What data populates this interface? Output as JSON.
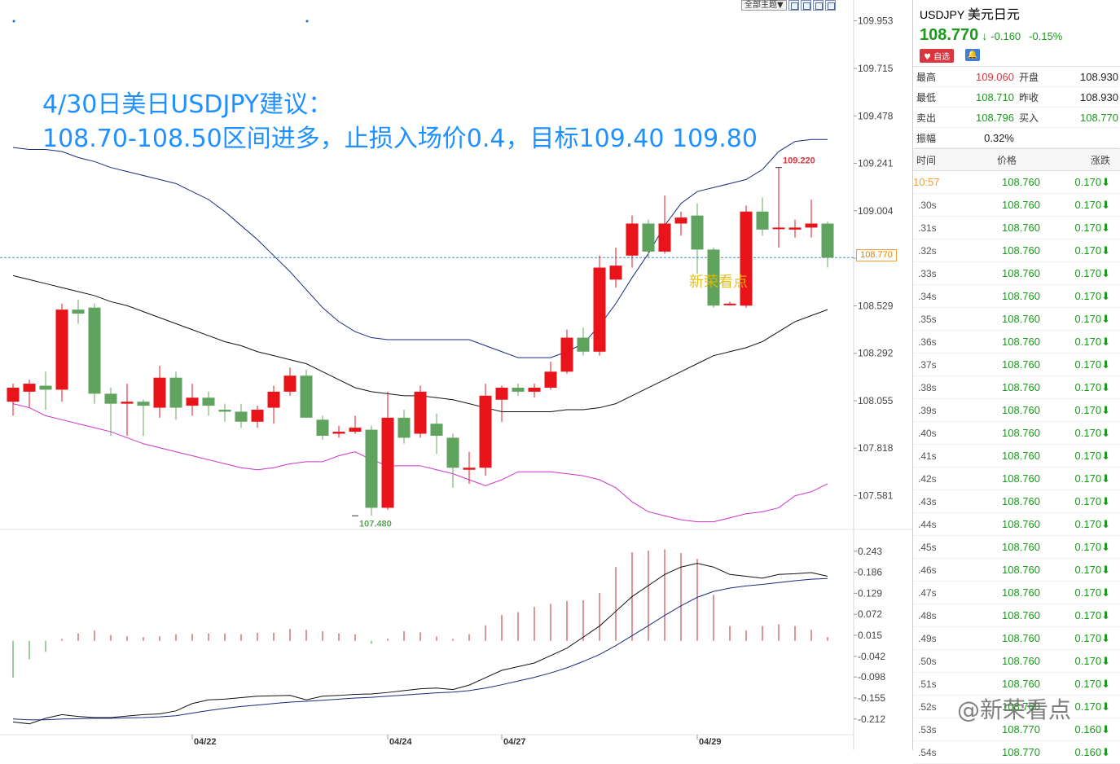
{
  "toolbar": {
    "theme_label": "全部主题▼"
  },
  "advice": {
    "line1": "4/30日美日USDJPY建议：",
    "line2": "108.70-108.50区间进多，止损入场价0.4，目标109.40  109.80"
  },
  "watermarks": {
    "chart": "新荣看点",
    "bottom": "@新荣看点"
  },
  "price_tag": "108.770",
  "colors": {
    "up": "#e8141a",
    "down": "#5fa35f",
    "accent": "#1e90ff",
    "upper_band": "#1a2a80",
    "mid_band": "#111111",
    "lower_band": "#cc33cc"
  },
  "quote": {
    "symbol": "USDJPY",
    "name": "美元日元",
    "last": "108.770",
    "arrow": "↓",
    "change": "-0.160",
    "change_pct": "-0.15%",
    "fav_label": "自选",
    "bell_icon": "bell-icon"
  },
  "stats": [
    {
      "l1": "最高",
      "v1": "109.060",
      "c1": "red",
      "l2": "开盘",
      "v2": "108.930",
      "c2": "black"
    },
    {
      "l1": "最低",
      "v1": "108.710",
      "c1": "green",
      "l2": "昨收",
      "v2": "108.930",
      "c2": "black"
    },
    {
      "l1": "卖出",
      "v1": "108.796",
      "c1": "green",
      "l2": "买入",
      "v2": "108.770",
      "c2": "green"
    },
    {
      "l1": "振幅",
      "v1": "0.32%",
      "c1": "black",
      "l2": "",
      "v2": "",
      "c2": "black"
    }
  ],
  "ticks_header": {
    "time": "时间",
    "price": "价格",
    "change": "涨跌"
  },
  "ticks": [
    {
      "time": "10:57",
      "price": "108.760",
      "change": "0.170",
      "hl": true
    },
    {
      "time": ".30s",
      "price": "108.760",
      "change": "0.170"
    },
    {
      "time": ".31s",
      "price": "108.760",
      "change": "0.170"
    },
    {
      "time": ".32s",
      "price": "108.760",
      "change": "0.170"
    },
    {
      "time": ".33s",
      "price": "108.760",
      "change": "0.170"
    },
    {
      "time": ".34s",
      "price": "108.760",
      "change": "0.170"
    },
    {
      "time": ".35s",
      "price": "108.760",
      "change": "0.170"
    },
    {
      "time": ".36s",
      "price": "108.760",
      "change": "0.170"
    },
    {
      "time": ".37s",
      "price": "108.760",
      "change": "0.170"
    },
    {
      "time": ".38s",
      "price": "108.760",
      "change": "0.170"
    },
    {
      "time": ".39s",
      "price": "108.760",
      "change": "0.170"
    },
    {
      "time": ".40s",
      "price": "108.760",
      "change": "0.170"
    },
    {
      "time": ".41s",
      "price": "108.760",
      "change": "0.170"
    },
    {
      "time": ".42s",
      "price": "108.760",
      "change": "0.170"
    },
    {
      "time": ".43s",
      "price": "108.760",
      "change": "0.170"
    },
    {
      "time": ".44s",
      "price": "108.760",
      "change": "0.170"
    },
    {
      "time": ".45s",
      "price": "108.760",
      "change": "0.170"
    },
    {
      "time": ".46s",
      "price": "108.760",
      "change": "0.170"
    },
    {
      "time": ".47s",
      "price": "108.760",
      "change": "0.170"
    },
    {
      "time": ".48s",
      "price": "108.760",
      "change": "0.170"
    },
    {
      "time": ".49s",
      "price": "108.760",
      "change": "0.170"
    },
    {
      "time": ".50s",
      "price": "108.760",
      "change": "0.170"
    },
    {
      "time": ".51s",
      "price": "108.760",
      "change": "0.170"
    },
    {
      "time": ".52s",
      "price": "108.760",
      "change": "0.170"
    },
    {
      "time": ".53s",
      "price": "108.770",
      "change": "0.160"
    },
    {
      "time": ".54s",
      "price": "108.770",
      "change": "0.160"
    }
  ],
  "chart_data": {
    "type": "candlestick",
    "price_axis_ticks": [
      109.953,
      109.715,
      109.478,
      109.241,
      109.004,
      108.767,
      108.529,
      108.292,
      108.055,
      107.818,
      107.581
    ],
    "price_axis_labels": [
      "109.953",
      "109.715",
      "109.478",
      "109.241",
      "109.004",
      "108.767",
      "108.529",
      "108.292",
      "108.055",
      "107.818",
      "107.581"
    ],
    "ylim": [
      107.42,
      110.0
    ],
    "date_labels": [
      {
        "label": "04/22",
        "index": 11
      },
      {
        "label": "04/24",
        "index": 23
      },
      {
        "label": "04/27",
        "index": 30
      },
      {
        "label": "04/29",
        "index": 42
      }
    ],
    "annotations": [
      {
        "label": "109.220",
        "index": 47,
        "value": 109.22,
        "color": "#d9363e"
      },
      {
        "label": "107.480",
        "index": 21,
        "value": 107.48,
        "color": "#5fa35f"
      }
    ],
    "current_price": 108.77,
    "candles": [
      [
        108.05,
        108.12,
        108.14,
        107.98
      ],
      [
        108.1,
        108.14,
        108.16,
        108.02
      ],
      [
        108.13,
        108.11,
        108.2,
        108.01
      ],
      [
        108.11,
        108.51,
        108.54,
        108.05
      ],
      [
        108.51,
        108.49,
        108.56,
        108.44
      ],
      [
        108.52,
        108.09,
        108.54,
        108.04
      ],
      [
        108.09,
        108.04,
        108.12,
        107.88
      ],
      [
        108.04,
        108.05,
        108.14,
        107.88
      ],
      [
        108.05,
        108.03,
        108.06,
        107.88
      ],
      [
        108.02,
        108.17,
        108.23,
        107.97
      ],
      [
        108.17,
        108.02,
        108.2,
        107.96
      ],
      [
        108.03,
        108.07,
        108.14,
        107.98
      ],
      [
        108.07,
        108.03,
        108.1,
        107.98
      ],
      [
        108.01,
        108.0,
        108.04,
        107.95
      ],
      [
        108.0,
        107.95,
        108.04,
        107.92
      ],
      [
        107.95,
        108.01,
        108.03,
        107.92
      ],
      [
        108.02,
        108.1,
        108.13,
        107.94
      ],
      [
        108.1,
        108.18,
        108.22,
        108.08
      ],
      [
        108.18,
        107.97,
        108.21,
        107.97
      ],
      [
        107.96,
        107.88,
        107.98,
        107.86
      ],
      [
        107.89,
        107.9,
        107.93,
        107.87
      ],
      [
        107.9,
        107.92,
        107.98,
        107.89
      ],
      [
        107.91,
        107.52,
        107.93,
        107.48
      ],
      [
        107.52,
        107.97,
        108.1,
        107.51
      ],
      [
        107.97,
        107.87,
        108.01,
        107.84
      ],
      [
        107.89,
        108.1,
        108.13,
        107.87
      ],
      [
        107.94,
        107.88,
        107.99,
        107.79
      ],
      [
        107.87,
        107.72,
        107.89,
        107.62
      ],
      [
        107.71,
        107.72,
        107.8,
        107.64
      ],
      [
        107.72,
        108.08,
        108.14,
        107.68
      ],
      [
        108.06,
        108.12,
        108.13,
        107.95
      ],
      [
        108.12,
        108.1,
        108.14,
        108.08
      ],
      [
        108.1,
        108.12,
        108.14,
        108.07
      ],
      [
        108.12,
        108.2,
        108.25,
        108.11
      ],
      [
        108.2,
        108.37,
        108.41,
        108.19
      ],
      [
        108.37,
        108.3,
        108.42,
        108.28
      ],
      [
        108.3,
        108.72,
        108.78,
        108.28
      ],
      [
        108.66,
        108.73,
        108.82,
        108.62
      ],
      [
        108.78,
        108.94,
        108.98,
        108.72
      ],
      [
        108.94,
        108.8,
        108.96,
        108.77
      ],
      [
        108.8,
        108.94,
        109.08,
        108.79
      ],
      [
        108.94,
        108.97,
        109.0,
        108.88
      ],
      [
        108.98,
        108.81,
        109.04,
        108.69
      ],
      [
        108.81,
        108.53,
        108.82,
        108.52
      ],
      [
        108.54,
        108.54,
        108.55,
        108.53
      ],
      [
        108.53,
        109.0,
        109.03,
        108.52
      ],
      [
        109.0,
        108.91,
        109.07,
        108.88
      ],
      [
        108.92,
        108.92,
        109.22,
        108.82
      ],
      [
        108.91,
        108.92,
        108.96,
        108.87
      ],
      [
        108.92,
        108.94,
        109.06,
        108.87
      ],
      [
        108.94,
        108.77,
        108.95,
        108.72
      ]
    ],
    "bollinger": {
      "upper": [
        109.32,
        109.31,
        109.31,
        109.3,
        109.27,
        109.25,
        109.22,
        109.2,
        109.18,
        109.16,
        109.14,
        109.1,
        109.06,
        109.0,
        108.93,
        108.86,
        108.78,
        108.7,
        108.61,
        108.52,
        108.45,
        108.4,
        108.37,
        108.36,
        108.36,
        108.36,
        108.36,
        108.36,
        108.36,
        108.33,
        108.3,
        108.27,
        108.27,
        108.27,
        108.3,
        108.34,
        108.43,
        108.54,
        108.67,
        108.79,
        108.93,
        109.04,
        109.1,
        109.12,
        109.14,
        109.16,
        109.21,
        109.3,
        109.35,
        109.36,
        109.36
      ],
      "mid": [
        108.68,
        108.66,
        108.64,
        108.62,
        108.6,
        108.58,
        108.55,
        108.53,
        108.5,
        108.47,
        108.44,
        108.41,
        108.38,
        108.35,
        108.33,
        108.3,
        108.28,
        108.26,
        108.24,
        108.2,
        108.16,
        108.12,
        108.1,
        108.09,
        108.08,
        108.08,
        108.07,
        108.06,
        108.04,
        108.02,
        108.0,
        108.0,
        108.0,
        108.0,
        108.01,
        108.01,
        108.02,
        108.04,
        108.08,
        108.12,
        108.16,
        108.2,
        108.24,
        108.28,
        108.3,
        108.32,
        108.35,
        108.4,
        108.45,
        108.48,
        108.51
      ],
      "lower": [
        108.04,
        108.02,
        107.98,
        107.96,
        107.94,
        107.92,
        107.9,
        107.87,
        107.84,
        107.82,
        107.8,
        107.78,
        107.76,
        107.74,
        107.72,
        107.71,
        107.72,
        107.74,
        107.75,
        107.75,
        107.78,
        107.8,
        107.76,
        107.73,
        107.73,
        107.73,
        107.71,
        107.69,
        107.66,
        107.63,
        107.66,
        107.7,
        107.7,
        107.7,
        107.69,
        107.68,
        107.66,
        107.62,
        107.55,
        107.5,
        107.48,
        107.46,
        107.45,
        107.45,
        107.47,
        107.49,
        107.5,
        107.52,
        107.58,
        107.6,
        107.64
      ]
    },
    "macd": {
      "axis_ticks": [
        0.243,
        0.186,
        0.129,
        0.072,
        0.015,
        -0.042,
        -0.098,
        -0.155,
        -0.212
      ],
      "axis_labels": [
        "0.243",
        "0.186",
        "0.129",
        "0.072",
        "0.015",
        "-0.042",
        "-0.098",
        "-0.155",
        "-0.212"
      ],
      "ylim": [
        -0.25,
        0.28
      ],
      "histogram": [
        -0.1,
        -0.05,
        -0.03,
        0.005,
        0.02,
        0.028,
        0.016,
        0.012,
        0.01,
        0.012,
        0.018,
        0.019,
        0.02,
        0.02,
        0.018,
        0.022,
        0.022,
        0.032,
        0.03,
        0.026,
        0.02,
        0.018,
        -0.008,
        0.006,
        0.026,
        0.023,
        0.012,
        0.005,
        0.018,
        0.042,
        0.07,
        0.078,
        0.092,
        0.1,
        0.108,
        0.11,
        0.13,
        0.2,
        0.24,
        0.245,
        0.248,
        0.238,
        0.222,
        0.125,
        0.04,
        0.028,
        0.04,
        0.045,
        0.04,
        0.03,
        0.01
      ],
      "dif": [
        -0.22,
        -0.225,
        -0.21,
        -0.2,
        -0.205,
        -0.208,
        -0.208,
        -0.204,
        -0.2,
        -0.198,
        -0.19,
        -0.17,
        -0.16,
        -0.158,
        -0.154,
        -0.15,
        -0.149,
        -0.148,
        -0.16,
        -0.15,
        -0.148,
        -0.145,
        -0.144,
        -0.14,
        -0.135,
        -0.13,
        -0.128,
        -0.132,
        -0.12,
        -0.1,
        -0.08,
        -0.07,
        -0.06,
        -0.04,
        -0.02,
        0.01,
        0.04,
        0.08,
        0.12,
        0.15,
        0.18,
        0.2,
        0.21,
        0.2,
        0.18,
        0.175,
        0.17,
        0.18,
        0.182,
        0.185,
        0.175
      ],
      "dea": [
        -0.212,
        -0.214,
        -0.214,
        -0.212,
        -0.211,
        -0.21,
        -0.21,
        -0.209,
        -0.208,
        -0.206,
        -0.203,
        -0.196,
        -0.189,
        -0.183,
        -0.178,
        -0.174,
        -0.17,
        -0.166,
        -0.164,
        -0.161,
        -0.158,
        -0.155,
        -0.153,
        -0.15,
        -0.147,
        -0.144,
        -0.141,
        -0.139,
        -0.135,
        -0.128,
        -0.119,
        -0.109,
        -0.099,
        -0.087,
        -0.073,
        -0.056,
        -0.037,
        -0.013,
        0.014,
        0.041,
        0.069,
        0.095,
        0.118,
        0.134,
        0.143,
        0.149,
        0.153,
        0.158,
        0.163,
        0.167,
        0.169
      ]
    }
  }
}
